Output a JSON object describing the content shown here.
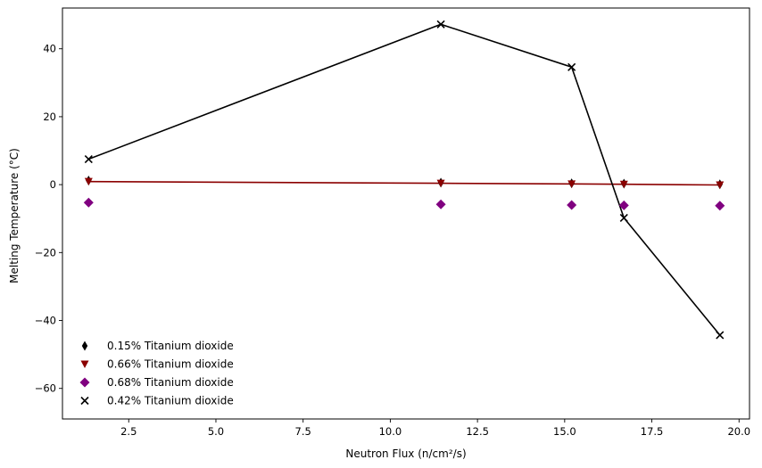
{
  "chart_data": {
    "type": "line",
    "xlabel": "Neutron Flux (n/cm²/s)",
    "ylabel": "Melting Temperature (°C)",
    "xlim": [
      0.6,
      20.3
    ],
    "ylim": [
      -69,
      52
    ],
    "xticks": [
      2.5,
      5.0,
      7.5,
      10.0,
      12.5,
      15.0,
      17.5,
      20.0
    ],
    "xtick_labels": [
      "2.5",
      "5.0",
      "7.5",
      "10.0",
      "12.5",
      "15.0",
      "17.5",
      "20.0"
    ],
    "yticks": [
      -60,
      -40,
      -20,
      0,
      20,
      40
    ],
    "ytick_labels": [
      "−60",
      "−40",
      "−20",
      "0",
      "20",
      "40"
    ],
    "grid": false,
    "legend_position": "lower-left",
    "series": [
      {
        "name": "0.15% Titanium dioxide",
        "marker": "thin_diamond",
        "color": "#000000",
        "line": false,
        "x": [
          1.35,
          11.45,
          15.2,
          16.7,
          19.45
        ],
        "y": [
          1.2,
          0.6,
          0.4,
          0.3,
          0.1
        ]
      },
      {
        "name": "0.66% Titanium dioxide",
        "marker": "triangle_down",
        "color": "#8b0000",
        "line": true,
        "x": [
          1.35,
          11.45,
          15.2,
          16.7,
          19.45
        ],
        "y": [
          0.9,
          0.4,
          0.2,
          0.1,
          -0.1
        ]
      },
      {
        "name": "0.68% Titanium dioxide",
        "marker": "diamond",
        "color": "#800080",
        "line": false,
        "x": [
          1.35,
          11.45,
          15.2,
          16.7,
          19.45
        ],
        "y": [
          -5.3,
          -5.8,
          -6.0,
          -6.1,
          -6.2
        ]
      },
      {
        "name": "0.42% Titanium dioxide",
        "marker": "x",
        "color": "#000000",
        "line": true,
        "x": [
          1.35,
          11.45,
          15.2,
          16.7,
          19.45
        ],
        "y": [
          7.5,
          47.2,
          34.6,
          -9.8,
          -44.3
        ]
      }
    ]
  }
}
